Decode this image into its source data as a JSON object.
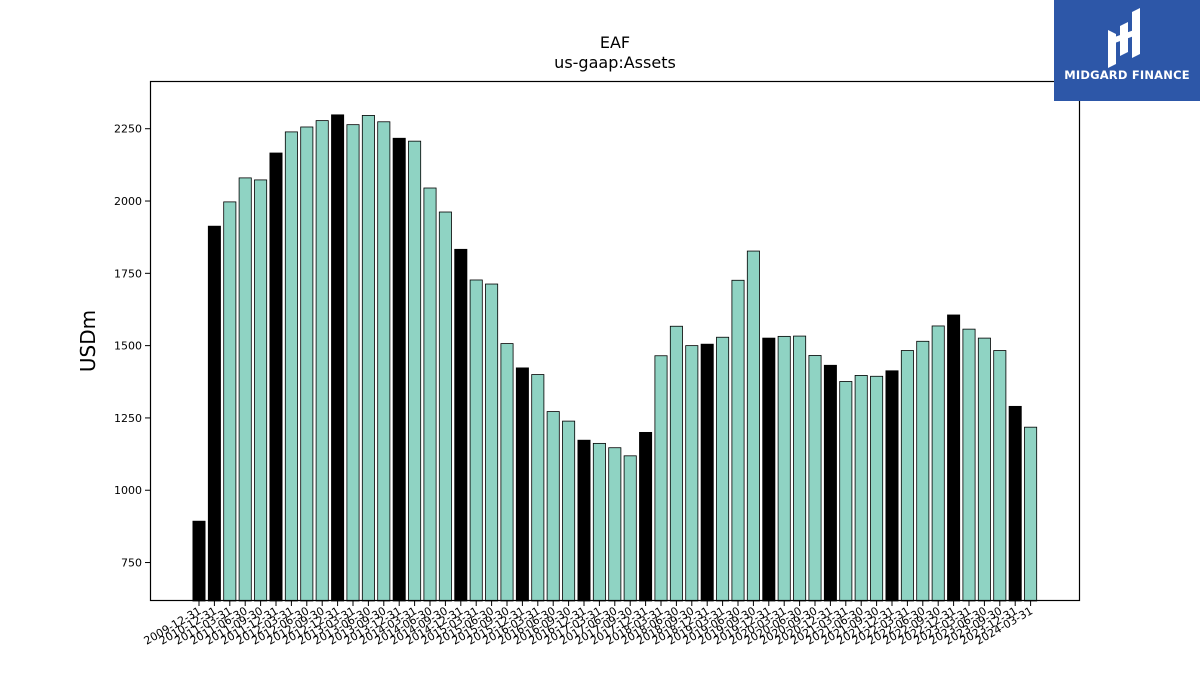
{
  "logo": {
    "text": "MIDGARD FINANCE"
  },
  "colors": {
    "highlight": "#000000",
    "normal": "#8fd3c3",
    "edge": "#000000"
  },
  "chart_data": {
    "type": "bar",
    "title": "EAF",
    "subtitle": "us-gaap:Assets",
    "xlabel": "",
    "ylabel": "USDm",
    "ylim": [
      617,
      2415
    ],
    "yticks": [
      750,
      1000,
      1250,
      1500,
      1750,
      2000,
      2250
    ],
    "grid": false,
    "categories": [
      "2009-12-31",
      "2010-12-31",
      "2011-03-31",
      "2011-06-30",
      "2011-09-30",
      "2011-12-31",
      "2012-03-31",
      "2012-06-30",
      "2012-09-30",
      "2012-12-31",
      "2013-03-31",
      "2013-06-30",
      "2013-09-30",
      "2013-12-31",
      "2014-03-31",
      "2014-06-30",
      "2014-09-30",
      "2014-12-31",
      "2015-03-31",
      "2015-06-30",
      "2015-09-30",
      "2015-12-31",
      "2016-03-31",
      "2016-06-30",
      "2016-09-30",
      "2016-12-31",
      "2017-03-31",
      "2017-06-30",
      "2017-09-30",
      "2017-12-31",
      "2018-03-31",
      "2018-06-30",
      "2018-09-30",
      "2018-12-31",
      "2019-03-31",
      "2019-06-30",
      "2019-09-30",
      "2019-12-31",
      "2020-03-31",
      "2020-06-30",
      "2020-09-30",
      "2020-12-31",
      "2021-03-31",
      "2021-06-30",
      "2021-09-30",
      "2021-12-31",
      "2022-03-31",
      "2022-06-30",
      "2022-09-30",
      "2022-12-31",
      "2023-03-31",
      "2023-06-30",
      "2023-09-30",
      "2023-12-31",
      "2024-03-31"
    ],
    "values": [
      893,
      1913,
      1997,
      2080,
      2073,
      2166,
      2239,
      2256,
      2278,
      2298,
      2264,
      2296,
      2274,
      2217,
      2207,
      2045,
      1962,
      1833,
      1727,
      1713,
      1507,
      1423,
      1400,
      1272,
      1239,
      1173,
      1162,
      1147,
      1119,
      1200,
      1465,
      1567,
      1500,
      1505,
      1529,
      1726,
      1827,
      1526,
      1532,
      1533,
      1466,
      1432,
      1376,
      1397,
      1394,
      1413,
      1483,
      1515,
      1568,
      1606,
      1557,
      1526,
      1483,
      1290,
      1218
    ],
    "highlighted": [
      true,
      true,
      false,
      false,
      false,
      true,
      false,
      false,
      false,
      true,
      false,
      false,
      false,
      true,
      false,
      false,
      false,
      true,
      false,
      false,
      false,
      true,
      false,
      false,
      false,
      true,
      false,
      false,
      false,
      true,
      false,
      false,
      false,
      true,
      false,
      false,
      false,
      true,
      false,
      false,
      false,
      true,
      false,
      false,
      false,
      true,
      false,
      false,
      false,
      true,
      false,
      false,
      false,
      true,
      false
    ]
  }
}
